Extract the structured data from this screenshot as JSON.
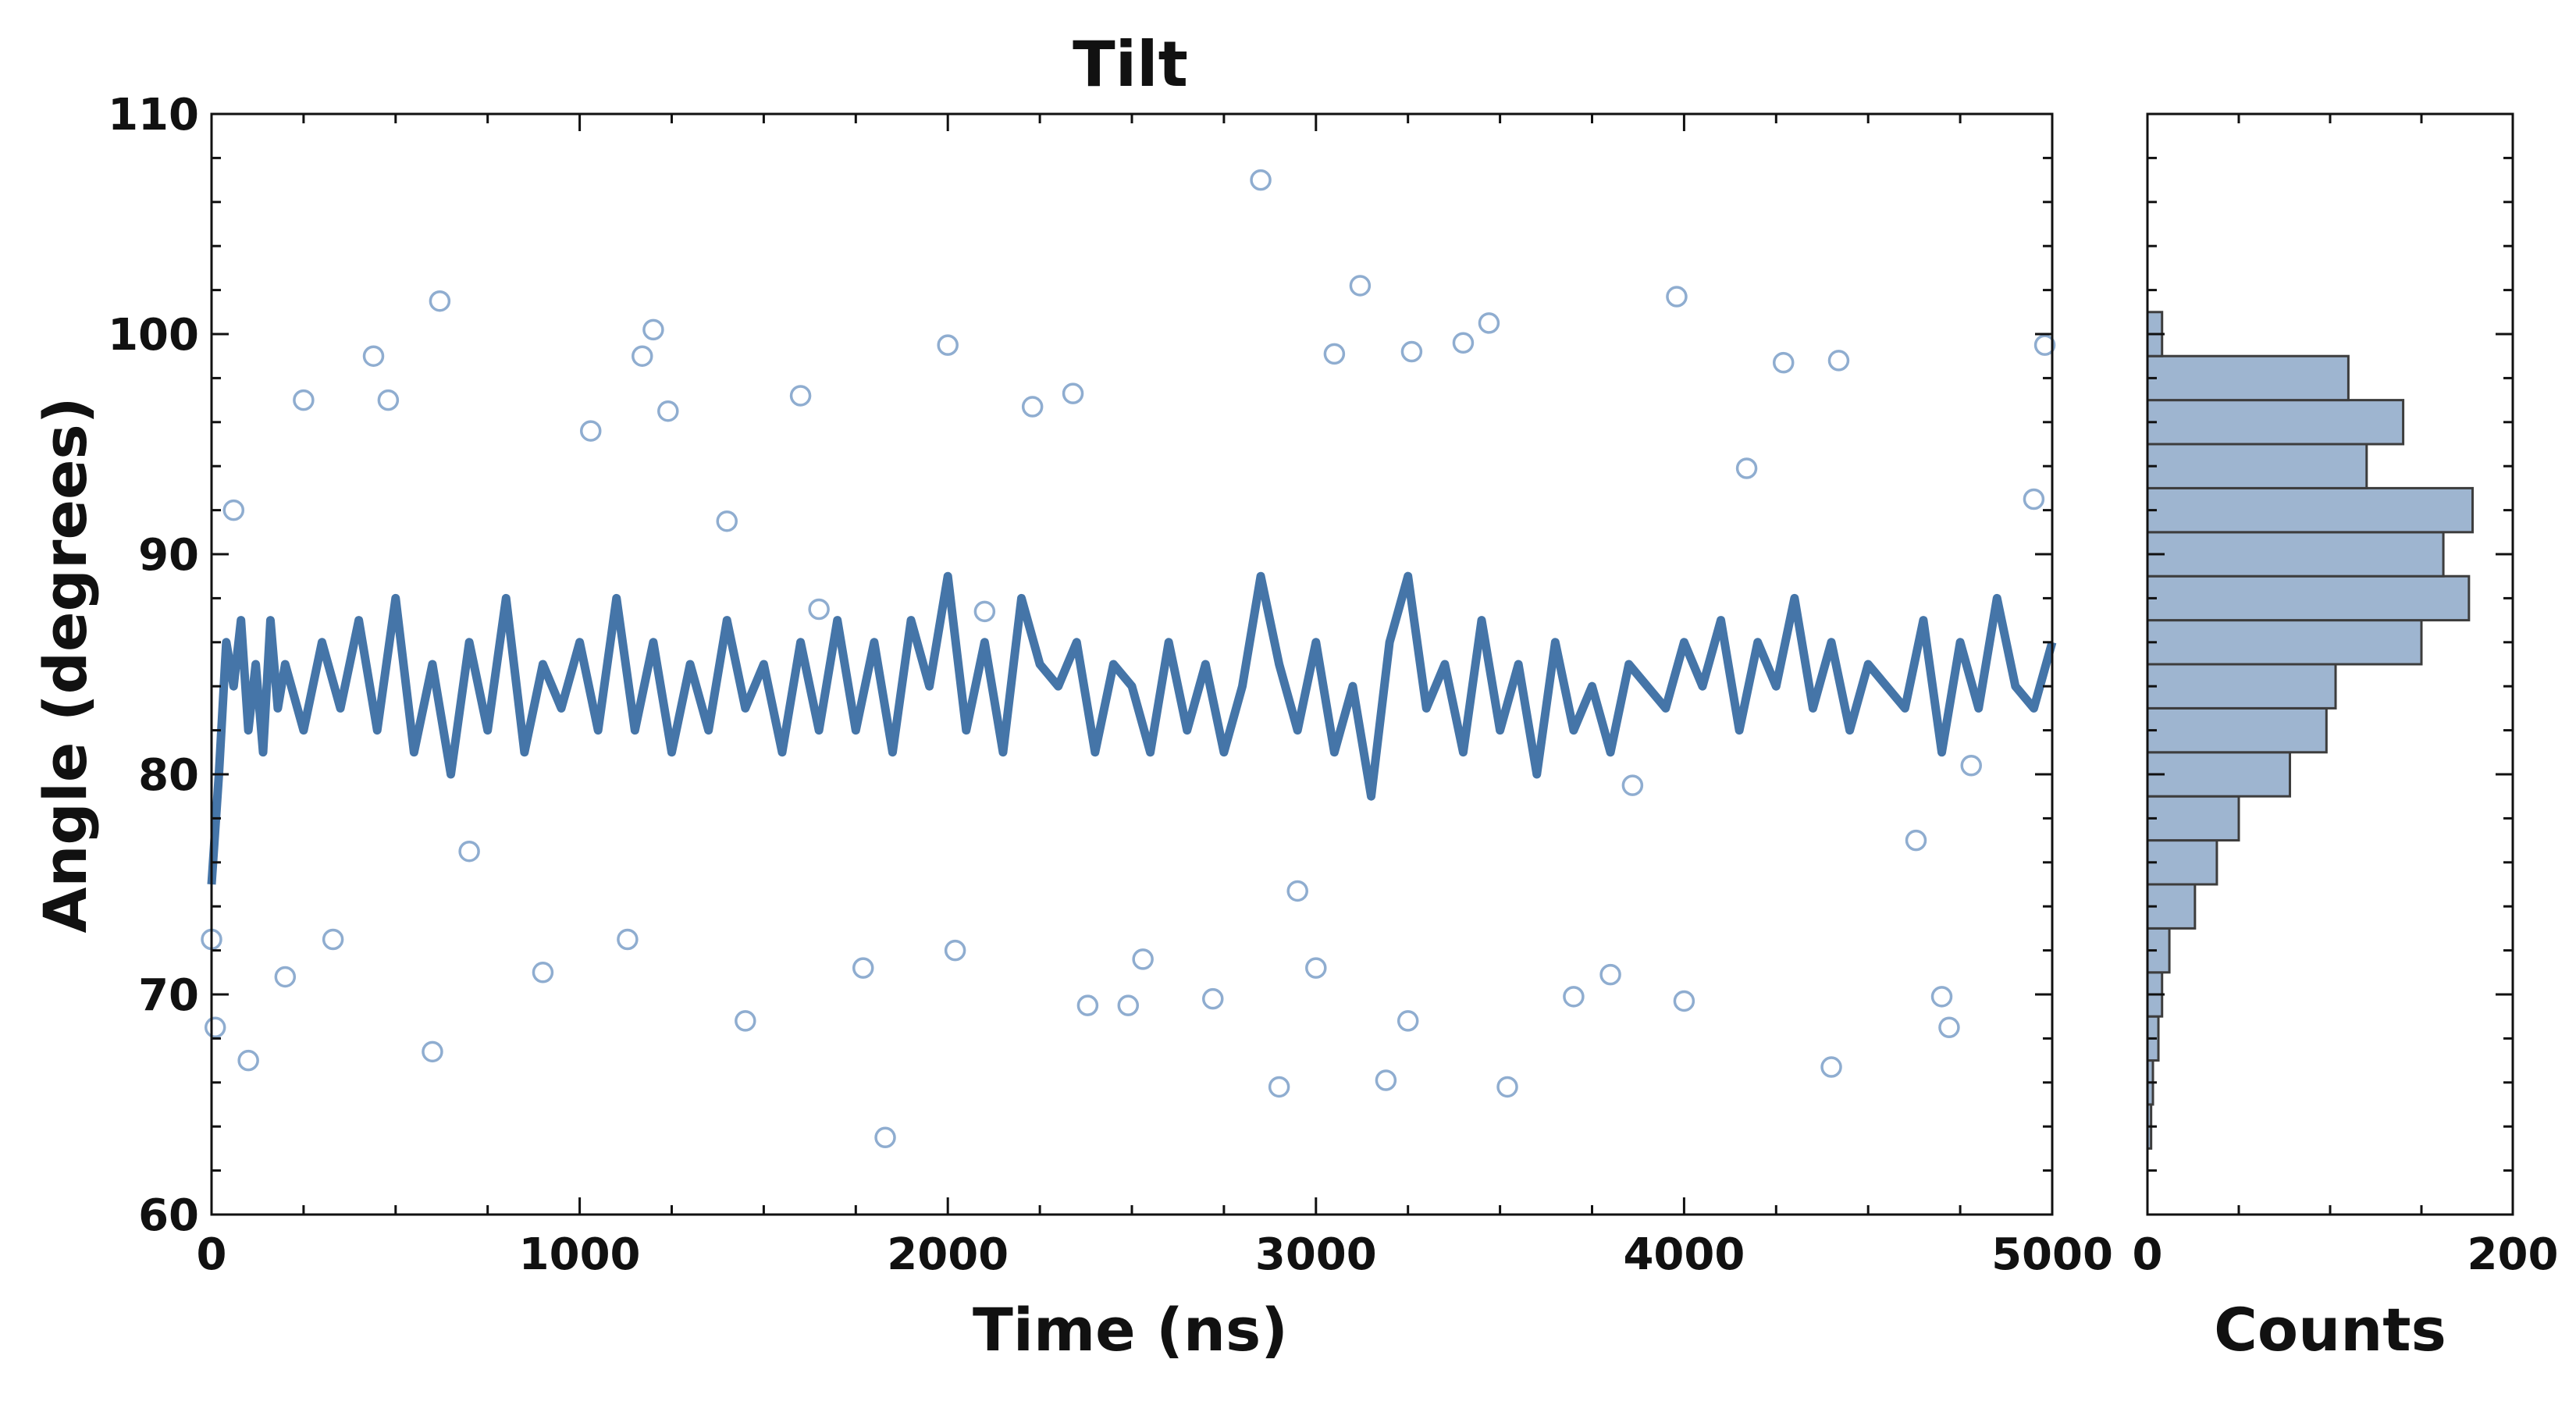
{
  "chart_data": [
    {
      "type": "scatter",
      "title": "Tilt",
      "xlabel": "Time (ns)",
      "ylabel": "Angle (degrees)",
      "xlim": [
        0,
        5000
      ],
      "ylim": [
        60,
        110
      ],
      "xticks": [
        "0",
        "1000",
        "2000",
        "3000",
        "4000",
        "5000"
      ],
      "yticks": [
        "60",
        "70",
        "80",
        "90",
        "100",
        "110"
      ],
      "grid": false,
      "colors": {
        "points": "#8fadd0",
        "line": "#4575a8"
      },
      "series": [
        {
          "kind": "scatter",
          "x": [
            0,
            10,
            60,
            100,
            200,
            250,
            330,
            440,
            480,
            600,
            620,
            700,
            900,
            1030,
            1130,
            1170,
            1200,
            1240,
            1400,
            1450,
            1600,
            1650,
            1770,
            1830,
            2000,
            2020,
            2100,
            2230,
            2340,
            2380,
            2490,
            2530,
            2720,
            2850,
            2900,
            2950,
            3000,
            3050,
            3120,
            3190,
            3250,
            3260,
            3400,
            3470,
            3520,
            3700,
            3800,
            3860,
            3980,
            4000,
            4170,
            4270,
            4400,
            4420,
            4630,
            4700,
            4720,
            4780,
            4950,
            4980
          ],
          "y": [
            72.5,
            68.5,
            92,
            67,
            70.8,
            97,
            72.5,
            99,
            97,
            67.4,
            101.5,
            76.5,
            71,
            95.6,
            72.5,
            99,
            100.2,
            96.5,
            91.5,
            68.8,
            97.2,
            87.5,
            71.2,
            63.5,
            99.5,
            72,
            87.4,
            96.7,
            97.3,
            69.5,
            69.5,
            71.6,
            69.8,
            107,
            65.8,
            74.7,
            71.2,
            99.1,
            102.2,
            66.1,
            68.8,
            99.2,
            99.6,
            100.5,
            65.8,
            69.9,
            70.9,
            79.5,
            101.7,
            69.7,
            93.9,
            98.7,
            66.7,
            98.8,
            77,
            69.9,
            68.5,
            80.4,
            92.5,
            99.5
          ]
        },
        {
          "kind": "line",
          "x": [
            0,
            20,
            40,
            60,
            80,
            100,
            120,
            140,
            160,
            180,
            200,
            250,
            300,
            350,
            400,
            450,
            500,
            550,
            600,
            650,
            700,
            750,
            800,
            850,
            900,
            950,
            1000,
            1050,
            1100,
            1150,
            1200,
            1250,
            1300,
            1350,
            1400,
            1450,
            1500,
            1550,
            1600,
            1650,
            1700,
            1750,
            1800,
            1850,
            1900,
            1950,
            2000,
            2050,
            2100,
            2150,
            2200,
            2250,
            2300,
            2350,
            2400,
            2450,
            2500,
            2550,
            2600,
            2650,
            2700,
            2750,
            2800,
            2850,
            2900,
            2950,
            3000,
            3050,
            3100,
            3150,
            3200,
            3250,
            3300,
            3350,
            3400,
            3450,
            3500,
            3550,
            3600,
            3650,
            3700,
            3750,
            3800,
            3850,
            3900,
            3950,
            4000,
            4050,
            4100,
            4150,
            4200,
            4250,
            4300,
            4350,
            4400,
            4450,
            4500,
            4550,
            4600,
            4650,
            4700,
            4750,
            4800,
            4850,
            4900,
            4950,
            5000
          ],
          "y": [
            75,
            80,
            86,
            84,
            87,
            82,
            85,
            81,
            87,
            83,
            85,
            82,
            86,
            83,
            87,
            82,
            88,
            81,
            85,
            80,
            86,
            82,
            88,
            81,
            85,
            83,
            86,
            82,
            88,
            82,
            86,
            81,
            85,
            82,
            87,
            83,
            85,
            81,
            86,
            82,
            87,
            82,
            86,
            81,
            87,
            84,
            89,
            82,
            86,
            81,
            88,
            85,
            84,
            86,
            81,
            85,
            84,
            81,
            86,
            82,
            85,
            81,
            84,
            89,
            85,
            82,
            86,
            81,
            84,
            79,
            86,
            89,
            83,
            85,
            81,
            87,
            82,
            85,
            80,
            86,
            82,
            84,
            81,
            85,
            84,
            83,
            86,
            84,
            87,
            82,
            86,
            84,
            88,
            83,
            86,
            82,
            85,
            84,
            83,
            87,
            81,
            86,
            83,
            88,
            84,
            83,
            86
          ]
        }
      ]
    },
    {
      "type": "bar",
      "orientation": "horizontal",
      "xlabel": "Counts",
      "xlim": [
        0,
        200
      ],
      "ylim": [
        60,
        110
      ],
      "xticks": [
        "0",
        "200"
      ],
      "colors": {
        "bars": "#9eb5d0",
        "edge": "#3d3d3d"
      },
      "bins": [
        64,
        66,
        68,
        70,
        72,
        74,
        76,
        78,
        80,
        82,
        84,
        86,
        88,
        90,
        92,
        94,
        96,
        98,
        100
      ],
      "counts": [
        2,
        3,
        6,
        8,
        12,
        26,
        38,
        50,
        78,
        98,
        103,
        150,
        176,
        162,
        178,
        120,
        140,
        110,
        8
      ]
    }
  ]
}
